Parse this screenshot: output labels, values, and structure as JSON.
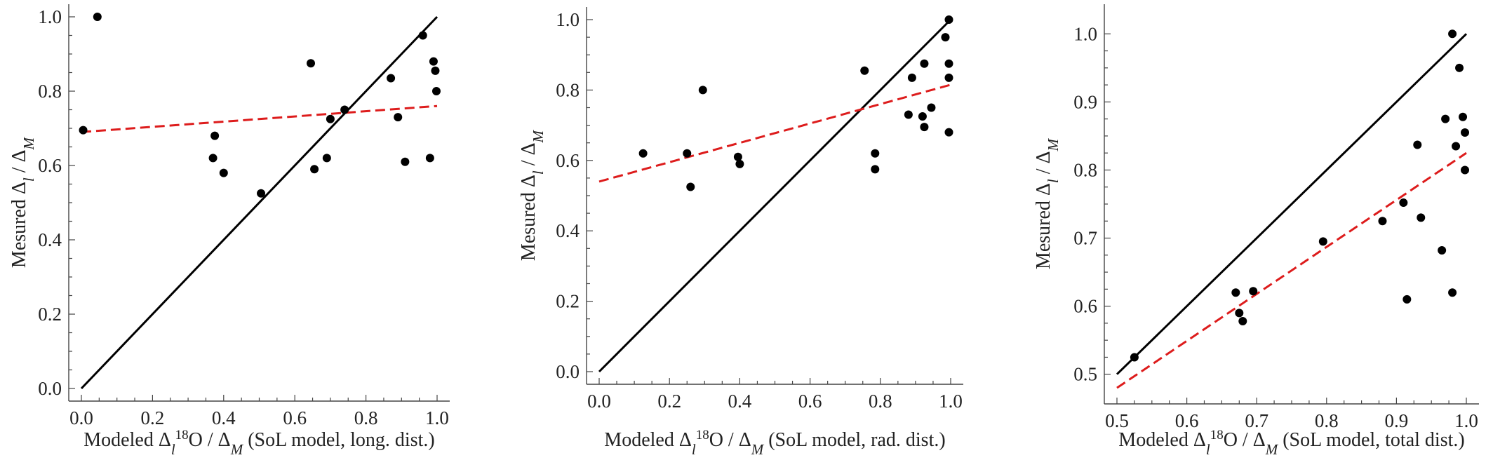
{
  "chart_data": [
    {
      "type": "scatter",
      "xlabel": {
        "prefix": "Modeled  Δ",
        "sub": "l",
        "sup": "18",
        "mid": "O / Δ",
        "sub2": "M",
        "suffix": " (SoL model, long. dist.)"
      },
      "ylabel": {
        "prefix": "Mesured Δ",
        "sub": "l",
        "mid": " / Δ",
        "sub2": "M"
      },
      "xlim": [
        0,
        1.0
      ],
      "ylim": [
        0,
        1.0
      ],
      "xticks": [
        0.0,
        0.2,
        0.4,
        0.6,
        0.8,
        1.0
      ],
      "xtick_labels": [
        "0.0",
        "0.2",
        "0.4",
        "0.6",
        "0.8",
        "1.0"
      ],
      "yticks": [
        0.0,
        0.2,
        0.4,
        0.6,
        0.8,
        1.0
      ],
      "ytick_labels": [
        "0.0",
        "0.2",
        "0.4",
        "0.6",
        "0.8",
        "1.0"
      ],
      "points": [
        {
          "x": 0.005,
          "y": 0.695
        },
        {
          "x": 0.045,
          "y": 1.0
        },
        {
          "x": 0.37,
          "y": 0.62
        },
        {
          "x": 0.375,
          "y": 0.68
        },
        {
          "x": 0.4,
          "y": 0.58
        },
        {
          "x": 0.505,
          "y": 0.525
        },
        {
          "x": 0.645,
          "y": 0.875
        },
        {
          "x": 0.655,
          "y": 0.59
        },
        {
          "x": 0.69,
          "y": 0.62
        },
        {
          "x": 0.7,
          "y": 0.725
        },
        {
          "x": 0.74,
          "y": 0.75
        },
        {
          "x": 0.87,
          "y": 0.835
        },
        {
          "x": 0.89,
          "y": 0.73
        },
        {
          "x": 0.91,
          "y": 0.61
        },
        {
          "x": 0.96,
          "y": 0.95
        },
        {
          "x": 0.98,
          "y": 0.62
        },
        {
          "x": 0.99,
          "y": 0.88
        },
        {
          "x": 0.995,
          "y": 0.855
        },
        {
          "x": 0.998,
          "y": 0.8
        }
      ],
      "identity_line": [
        [
          0,
          0
        ],
        [
          1.0,
          1.0
        ]
      ],
      "fit_line": [
        [
          0,
          0.69
        ],
        [
          1.0,
          0.76
        ]
      ]
    },
    {
      "type": "scatter",
      "xlabel": {
        "prefix": "Modeled  Δ",
        "sub": "l",
        "sup": "18",
        "mid": "O / Δ",
        "sub2": "M",
        "suffix": " (SoL model, rad. dist.)"
      },
      "ylabel": {
        "prefix": "Mesured Δ",
        "sub": "l",
        "mid": " / Δ",
        "sub2": "M"
      },
      "xlim": [
        0,
        1.0
      ],
      "ylim": [
        0,
        1.0
      ],
      "xticks": [
        0.0,
        0.2,
        0.4,
        0.6,
        0.8,
        1.0
      ],
      "xtick_labels": [
        "0.0",
        "0.2",
        "0.4",
        "0.6",
        "0.8",
        "1.0"
      ],
      "yticks": [
        0.0,
        0.2,
        0.4,
        0.6,
        0.8,
        1.0
      ],
      "ytick_labels": [
        "0.0",
        "0.2",
        "0.4",
        "0.6",
        "0.8",
        "1.0"
      ],
      "points": [
        {
          "x": 0.125,
          "y": 0.62
        },
        {
          "x": 0.25,
          "y": 0.62
        },
        {
          "x": 0.26,
          "y": 0.525
        },
        {
          "x": 0.295,
          "y": 0.8
        },
        {
          "x": 0.395,
          "y": 0.61
        },
        {
          "x": 0.4,
          "y": 0.59
        },
        {
          "x": 0.755,
          "y": 0.855
        },
        {
          "x": 0.785,
          "y": 0.62
        },
        {
          "x": 0.785,
          "y": 0.575
        },
        {
          "x": 0.88,
          "y": 0.73
        },
        {
          "x": 0.89,
          "y": 0.835
        },
        {
          "x": 0.92,
          "y": 0.725
        },
        {
          "x": 0.925,
          "y": 0.875
        },
        {
          "x": 0.925,
          "y": 0.695
        },
        {
          "x": 0.945,
          "y": 0.75
        },
        {
          "x": 0.985,
          "y": 0.95
        },
        {
          "x": 0.995,
          "y": 1.0
        },
        {
          "x": 0.995,
          "y": 0.875
        },
        {
          "x": 0.995,
          "y": 0.835
        },
        {
          "x": 0.995,
          "y": 0.68
        }
      ],
      "identity_line": [
        [
          0,
          0
        ],
        [
          1.0,
          1.0
        ]
      ],
      "fit_line": [
        [
          0,
          0.54
        ],
        [
          1.0,
          0.815
        ]
      ]
    },
    {
      "type": "scatter",
      "xlabel": {
        "prefix": "Modeled  Δ",
        "sub": "l",
        "sup": "18",
        "mid": "O / Δ",
        "sub2": "M",
        "suffix": " (SoL model, total dist.)"
      },
      "ylabel": {
        "prefix": "Mesured Δ",
        "sub": "l",
        "mid": " / Δ",
        "sub2": "M"
      },
      "xlim": [
        0.5,
        1.0
      ],
      "ylim": [
        0.475,
        1.025
      ],
      "xticks": [
        0.5,
        0.6,
        0.7,
        0.8,
        0.9,
        1.0
      ],
      "xtick_labels": [
        "0.5",
        "0.6",
        "0.7",
        "0.8",
        "0.9",
        "1.0"
      ],
      "yticks": [
        0.5,
        0.6,
        0.7,
        0.8,
        0.9,
        1.0
      ],
      "ytick_labels": [
        "0.5",
        "0.6",
        "0.7",
        "0.8",
        "0.9",
        "1.0"
      ],
      "points": [
        {
          "x": 0.525,
          "y": 0.525
        },
        {
          "x": 0.67,
          "y": 0.62
        },
        {
          "x": 0.675,
          "y": 0.59
        },
        {
          "x": 0.68,
          "y": 0.578
        },
        {
          "x": 0.695,
          "y": 0.622
        },
        {
          "x": 0.795,
          "y": 0.695
        },
        {
          "x": 0.88,
          "y": 0.725
        },
        {
          "x": 0.91,
          "y": 0.752
        },
        {
          "x": 0.915,
          "y": 0.61
        },
        {
          "x": 0.93,
          "y": 0.837
        },
        {
          "x": 0.935,
          "y": 0.73
        },
        {
          "x": 0.965,
          "y": 0.682
        },
        {
          "x": 0.97,
          "y": 0.875
        },
        {
          "x": 0.98,
          "y": 1.0
        },
        {
          "x": 0.98,
          "y": 0.62
        },
        {
          "x": 0.985,
          "y": 0.835
        },
        {
          "x": 0.99,
          "y": 0.95
        },
        {
          "x": 0.995,
          "y": 0.878
        },
        {
          "x": 0.998,
          "y": 0.855
        },
        {
          "x": 0.998,
          "y": 0.8
        }
      ],
      "identity_line": [
        [
          0.5,
          0.5
        ],
        [
          1.0,
          1.0
        ]
      ],
      "fit_line": [
        [
          0.5,
          0.48
        ],
        [
          1.0,
          0.825
        ]
      ]
    }
  ]
}
